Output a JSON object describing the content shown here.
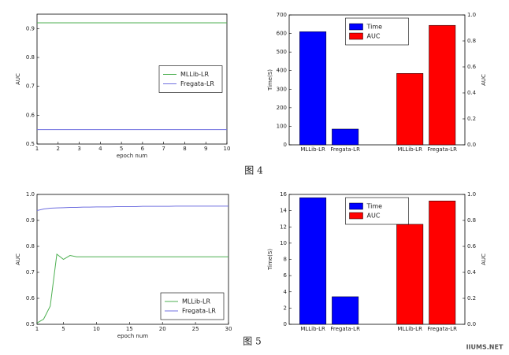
{
  "chart_data": [
    {
      "type": "line",
      "xlabel": "epoch num",
      "ylabel": "AUC",
      "x": [
        1,
        2,
        3,
        4,
        5,
        6,
        7,
        8,
        9,
        10
      ],
      "xlim": [
        1,
        10
      ],
      "xticks": [
        1,
        2,
        3,
        4,
        5,
        6,
        7,
        8,
        9,
        10
      ],
      "ylim": [
        0.5,
        0.95
      ],
      "yticks": [
        0.5,
        0.6,
        0.7,
        0.8,
        0.9
      ],
      "legend": "center right",
      "series": [
        {
          "name": "MLLib-LR",
          "color": "#4caf50",
          "values": [
            0.92,
            0.92,
            0.92,
            0.92,
            0.92,
            0.92,
            0.92,
            0.92,
            0.92,
            0.92
          ]
        },
        {
          "name": "Fregata-LR",
          "color": "#7070e0",
          "values": [
            0.55,
            0.55,
            0.55,
            0.55,
            0.55,
            0.55,
            0.55,
            0.55,
            0.55,
            0.55
          ]
        }
      ]
    },
    {
      "type": "bar",
      "ylabel": "Time(S)",
      "y2label": "AUC",
      "categories": [
        "MLLib-LR",
        "Fregata-LR",
        "MLLib-LR",
        "Fregata-LR"
      ],
      "ylim": [
        0,
        700
      ],
      "yticks": [
        0,
        100,
        200,
        300,
        400,
        500,
        600,
        700
      ],
      "y2lim": [
        0,
        1
      ],
      "y2ticks": [
        {
          "value": 0,
          "label": "0.0"
        },
        0.2,
        0.4,
        0.6,
        0.8,
        {
          "value": 1,
          "label": "1.0"
        }
      ],
      "legend": "upper center",
      "series": [
        {
          "name": "Time",
          "color": "#0000ff",
          "values": [
            610,
            85,
            null,
            null
          ]
        },
        {
          "name": "AUC",
          "color": "#ff0000",
          "axis": "y2",
          "values": [
            null,
            null,
            0.55,
            0.92
          ]
        }
      ]
    },
    {
      "type": "line",
      "xlabel": "epoch num",
      "ylabel": "AUC",
      "x": [
        1,
        2,
        3,
        4,
        5,
        6,
        7,
        8,
        9,
        10,
        11,
        12,
        13,
        14,
        15,
        16,
        17,
        18,
        19,
        20,
        21,
        22,
        23,
        24,
        25,
        26,
        27,
        28,
        29,
        30
      ],
      "xlim": [
        1,
        30
      ],
      "xticks": [
        1,
        5,
        10,
        15,
        20,
        25,
        30
      ],
      "ylim": [
        0.5,
        1
      ],
      "yticks": [
        0.5,
        0.6,
        0.7,
        0.8,
        0.9,
        {
          "value": 1,
          "label": "1.0"
        }
      ],
      "legend": "lower right",
      "series": [
        {
          "name": "MLLib-LR",
          "color": "#4caf50",
          "values": [
            0.505,
            0.52,
            0.57,
            0.77,
            0.75,
            0.765,
            0.76,
            0.76,
            0.76,
            0.76,
            0.76,
            0.76,
            0.76,
            0.76,
            0.76,
            0.76,
            0.76,
            0.76,
            0.76,
            0.76,
            0.76,
            0.76,
            0.76,
            0.76,
            0.76,
            0.76,
            0.76,
            0.76,
            0.76,
            0.76
          ]
        },
        {
          "name": "Fregata-LR",
          "color": "#7070e0",
          "values": [
            0.938,
            0.944,
            0.947,
            0.948,
            0.949,
            0.95,
            0.95,
            0.951,
            0.951,
            0.952,
            0.952,
            0.952,
            0.953,
            0.953,
            0.953,
            0.953,
            0.954,
            0.954,
            0.954,
            0.954,
            0.954,
            0.955,
            0.955,
            0.955,
            0.955,
            0.955,
            0.955,
            0.955,
            0.955,
            0.955
          ]
        }
      ]
    },
    {
      "type": "bar",
      "ylabel": "Time(S)",
      "y2label": "AUC",
      "categories": [
        "MLLib-LR",
        "Fregata-LR",
        "MLLib-LR",
        "Fregata-LR"
      ],
      "ylim": [
        0,
        16
      ],
      "yticks": [
        0,
        2,
        4,
        6,
        8,
        10,
        12,
        14,
        16
      ],
      "y2lim": [
        0,
        1
      ],
      "y2ticks": [
        {
          "value": 0,
          "label": "0.0"
        },
        0.2,
        0.4,
        0.6,
        0.8,
        {
          "value": 1,
          "label": "1.0"
        }
      ],
      "legend": "upper center",
      "series": [
        {
          "name": "Time",
          "color": "#0000ff",
          "values": [
            15.6,
            3.4,
            null,
            null
          ]
        },
        {
          "name": "AUC",
          "color": "#ff0000",
          "axis": "y2",
          "values": [
            null,
            null,
            0.77,
            0.95
          ]
        }
      ]
    }
  ],
  "captions": [
    "图 4",
    "图 5"
  ],
  "watermark": "IIUMS.NET"
}
